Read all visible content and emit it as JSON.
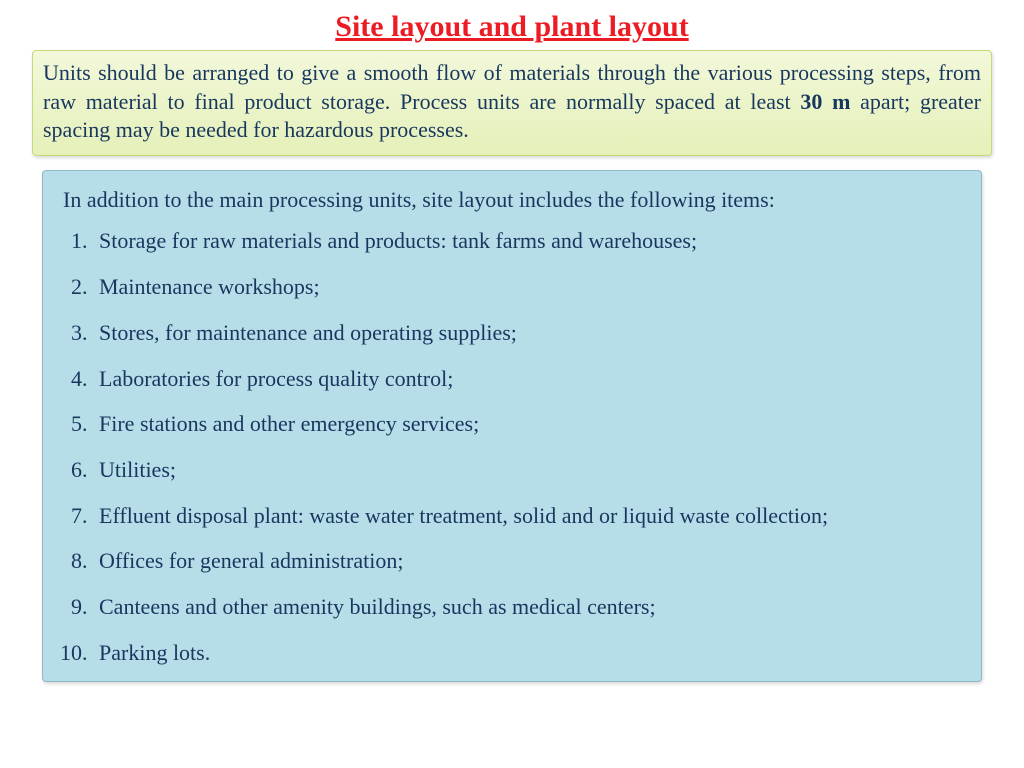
{
  "colors": {
    "title": "#ed1c24",
    "box1_bg_top": "#f2f8da",
    "box1_bg_bot": "#e5f0b9",
    "box1_border": "#c3d97a",
    "box1_text": "#17375e",
    "box2_bg": "#b6dde8",
    "box2_border": "#8fb8c4",
    "box2_text": "#17375e"
  },
  "title": "Site layout and plant layout",
  "box1": {
    "text_before_bold": "Units should be arranged to give a smooth flow of materials through the various processing steps, from raw material to final product storage. Process units are normally spaced at least ",
    "bold": "30 m",
    "text_after_bold": " apart; greater spacing may be needed for hazardous processes."
  },
  "box2": {
    "intro": "In addition to the main processing units, site layout  includes the following items:",
    "items": [
      "Storage for raw materials and products: tank farms and warehouses;",
      "Maintenance workshops;",
      "Stores, for maintenance and operating supplies;",
      "Laboratories for process quality control;",
      "Fire stations and other emergency services;",
      "Utilities;",
      "Effluent disposal plant: waste water treatment, solid and or liquid waste collection;",
      "Offices for general administration;",
      "Canteens and other amenity buildings, such as medical centers;",
      "Parking lots."
    ]
  }
}
